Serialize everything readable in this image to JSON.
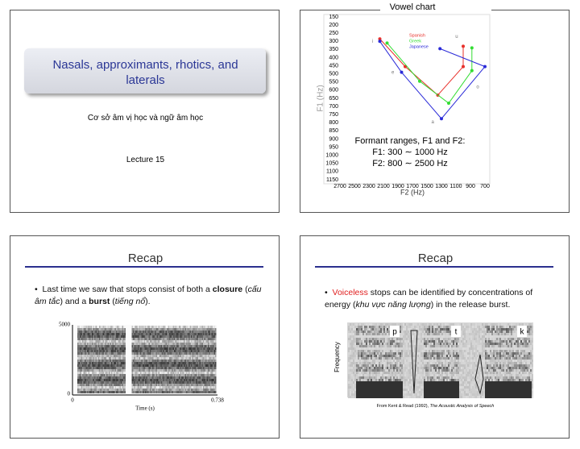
{
  "slides": [
    {
      "title": "Nasals, approximants, rhotics, and laterals",
      "subtitle": "Cơ sở âm vị học và ngữ âm học",
      "lecture": "Lecture 15"
    },
    {
      "chart": {
        "type": "line",
        "title": "Vowel chart",
        "x_label": "F2 (Hz)",
        "y_label": "F1 (Hz)",
        "xlim": [
          2700,
          700
        ],
        "ylim": [
          1150,
          150
        ],
        "xticks": [
          2700,
          2500,
          2300,
          2100,
          1900,
          1700,
          1500,
          1300,
          1100,
          900,
          700
        ],
        "yticks": [
          150,
          200,
          250,
          300,
          350,
          400,
          450,
          500,
          550,
          600,
          650,
          700,
          750,
          800,
          850,
          900,
          950,
          1000,
          1050,
          1100,
          1150
        ],
        "series": [
          {
            "name": "Spanish",
            "color": "#e8302a",
            "x": [
              2150,
              1800,
              1350,
              1000,
              1000
            ],
            "values": [
              285,
              455,
              630,
              455,
              330
            ]
          },
          {
            "name": "Greek",
            "color": "#33dd33",
            "x": [
              2050,
              1600,
              1200,
              880,
              880
            ],
            "values": [
              310,
              545,
              680,
              480,
              340
            ]
          },
          {
            "name": "Japanese",
            "color": "#2a2ad8",
            "x": [
              2150,
              1850,
              1300,
              700,
              1320
            ],
            "values": [
              300,
              490,
              775,
              455,
              345
            ]
          }
        ],
        "vowels": [
          {
            "label": "i",
            "x": 2250,
            "y": 300
          },
          {
            "label": "e",
            "x": 1970,
            "y": 490
          },
          {
            "label": "a",
            "x": 1420,
            "y": 795
          },
          {
            "label": "o",
            "x": 800,
            "y": 580
          },
          {
            "label": "u",
            "x": 1090,
            "y": 270
          }
        ],
        "annotation": [
          "Formant ranges, F1 and F2:",
          "F1: 300 ∼ 1000 Hz",
          "F2: 800 ∼ 2500 Hz"
        ]
      }
    },
    {
      "title": "Recap",
      "bullet": [
        "Last time we saw that stops consist of both a ",
        "closure",
        " (",
        "cấu âm tắc",
        ") and a ",
        "burst",
        " (",
        "tiếng nổ",
        ")."
      ],
      "spectrogram": {
        "y_top": "5000",
        "y_bottom": "0",
        "x_left": "0",
        "x_right": "0.738",
        "x_label": "Time (s)"
      }
    },
    {
      "title": "Recap",
      "bullet": [
        "Voiceless",
        " stops can be identified by concentrations of energy (",
        "khu vực năng lượng",
        ") in the release burst."
      ],
      "labels": [
        "p",
        "t",
        "k"
      ],
      "y_label": "Frequency",
      "caption": [
        "From Kent & Read (1992), ",
        "The Acoustic Analysis of Speech"
      ]
    }
  ]
}
